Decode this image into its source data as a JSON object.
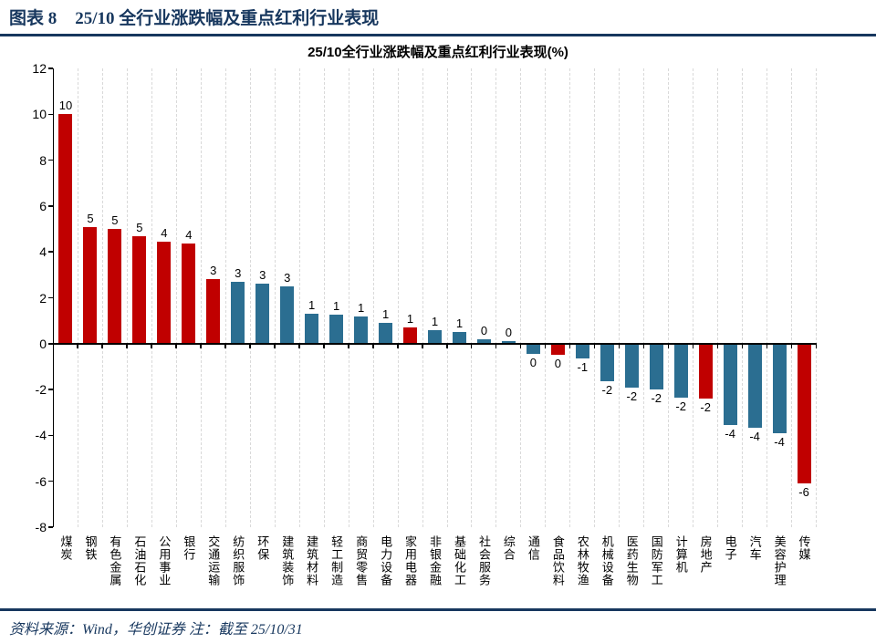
{
  "header": {
    "figure_label": "图表 8",
    "title": "25/10 全行业涨跌幅及重点红利行业表现"
  },
  "chart_data": {
    "type": "bar",
    "title": "25/10全行业涨跌幅及重点红利行业表现(%)",
    "categories": [
      "煤炭",
      "钢铁",
      "有色金属",
      "石油石化",
      "公用事业",
      "银行",
      "交通运输",
      "纺织服饰",
      "环保",
      "建筑装饰",
      "建筑材料",
      "轻工制造",
      "商贸零售",
      "电力设备",
      "家用电器",
      "非银金融",
      "基础化工",
      "社会服务",
      "综合",
      "通信",
      "食品饮料",
      "农林牧渔",
      "机械设备",
      "医药生物",
      "国防军工",
      "计算机",
      "房地产",
      "电子",
      "汽车",
      "美容护理",
      "传媒"
    ],
    "values": [
      10.0,
      5.1,
      5.0,
      4.7,
      4.45,
      4.35,
      2.8,
      2.7,
      2.6,
      2.5,
      1.3,
      1.25,
      1.2,
      0.9,
      0.7,
      0.6,
      0.5,
      0.2,
      0.1,
      -0.45,
      -0.5,
      -0.65,
      -1.65,
      -1.9,
      -2.0,
      -2.35,
      -2.4,
      -3.55,
      -3.65,
      -3.9,
      -6.1
    ],
    "labels": [
      "10",
      "5",
      "5",
      "5",
      "4",
      "4",
      "3",
      "3",
      "3",
      "3",
      "1",
      "1",
      "1",
      "1",
      "1",
      "1",
      "1",
      "0",
      "0",
      "0",
      "0",
      "-1",
      "-2",
      "-2",
      "-2",
      "-2",
      "-2",
      "-4",
      "-4",
      "-4",
      "-6"
    ],
    "highlighted": [
      true,
      true,
      true,
      true,
      true,
      true,
      true,
      false,
      false,
      false,
      false,
      false,
      false,
      false,
      true,
      false,
      false,
      false,
      false,
      false,
      true,
      false,
      false,
      false,
      false,
      false,
      true,
      false,
      false,
      false,
      true
    ],
    "colors": {
      "highlight": "#C00000",
      "normal": "#2B6E91",
      "gridline": "#D9D9D9",
      "axis": "#000000"
    },
    "ylim": [
      -8,
      12
    ],
    "yticks": [
      12,
      10,
      8,
      6,
      4,
      2,
      0,
      -2,
      -4,
      -6,
      -8
    ],
    "legend": "none",
    "grid": "vertical-dashed"
  },
  "footer": {
    "text": "资料来源：Wind，华创证券  注：截至 25/10/31"
  }
}
